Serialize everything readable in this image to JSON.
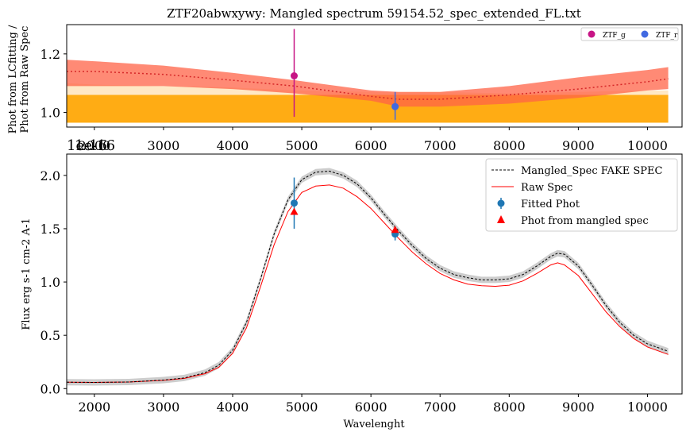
{
  "figure": {
    "title": "ZTF20abwxywy: Mangled spectrum 59154.52_spec_extended_FL.txt"
  },
  "chart_data": [
    {
      "type": "line",
      "panel": "top",
      "ylabel_line1": "Phot from LCfitting /",
      "ylabel_line2": "Phot from Raw Spec",
      "xlim": [
        1600,
        10500
      ],
      "ylim": [
        0.95,
        1.3
      ],
      "xticks": [
        2000,
        3000,
        4000,
        5000,
        6000,
        7000,
        8000,
        9000,
        10000
      ],
      "yticks": [
        1.0,
        1.2
      ],
      "offset_text": "1e-16",
      "legend_position": "top-right",
      "legend": [
        "ZTF_g",
        "ZTF_r"
      ],
      "ratio_curve": {
        "x": [
          1600,
          2000,
          3000,
          4000,
          4900,
          6000,
          6400,
          7000,
          8000,
          9000,
          10000,
          10300
        ],
        "y": [
          1.14,
          1.14,
          1.13,
          1.11,
          1.09,
          1.055,
          1.045,
          1.045,
          1.06,
          1.08,
          1.105,
          1.115
        ]
      },
      "red_band_upper": [
        1.18,
        1.175,
        1.16,
        1.135,
        1.11,
        1.075,
        1.07,
        1.07,
        1.09,
        1.12,
        1.145,
        1.155
      ],
      "red_band_lower": [
        1.09,
        1.09,
        1.09,
        1.08,
        1.065,
        1.04,
        1.02,
        1.02,
        1.03,
        1.05,
        1.075,
        1.08
      ],
      "orange_band_upper": [
        1.06,
        1.06,
        1.06,
        1.06,
        1.06,
        1.06,
        1.06,
        1.06,
        1.06,
        1.06,
        1.06,
        1.06
      ],
      "orange_band_lower": [
        0.965,
        0.965,
        0.965,
        0.965,
        0.965,
        0.965,
        0.965,
        0.965,
        0.965,
        0.965,
        0.965,
        0.965
      ],
      "light_band_upper": [
        1.1,
        1.095,
        1.09,
        1.085,
        1.075,
        1.07,
        1.07,
        1.07,
        1.065,
        1.07,
        1.075,
        1.075
      ],
      "points": [
        {
          "name": "ZTF_g",
          "x": 4890,
          "y": 1.125,
          "yerr_low": 0.985,
          "yerr_high": 1.285,
          "color": "#c71585"
        },
        {
          "name": "ZTF_r",
          "x": 6350,
          "y": 1.02,
          "yerr_low": 0.975,
          "yerr_high": 1.07,
          "color": "#4169e1"
        }
      ],
      "colors": {
        "curve": "#d62728",
        "red_band": "#ff6347",
        "orange_band": "#ffa500",
        "light_band": "#ffdead"
      }
    },
    {
      "type": "line",
      "panel": "bottom",
      "xlabel": "Wavelenght",
      "ylabel": "Flux erg s-1 cm-2 A-1",
      "xlim": [
        1600,
        10500
      ],
      "ylim": [
        -0.05,
        2.2
      ],
      "xticks": [
        2000,
        3000,
        4000,
        5000,
        6000,
        7000,
        8000,
        9000,
        10000
      ],
      "yticks": [
        0.0,
        0.5,
        1.0,
        1.5,
        2.0
      ],
      "offset_text": "1e-16",
      "legend_position": "top-right",
      "legend": [
        "Mangled_Spec FAKE SPEC",
        "Raw Spec",
        "Fitted Phot",
        "Phot from mangled spec"
      ],
      "x": [
        1600,
        2000,
        2500,
        3000,
        3300,
        3600,
        3800,
        4000,
        4200,
        4400,
        4600,
        4800,
        5000,
        5200,
        5400,
        5600,
        5800,
        6000,
        6200,
        6400,
        6600,
        6800,
        7000,
        7200,
        7400,
        7600,
        7800,
        8000,
        8200,
        8400,
        8600,
        8700,
        8800,
        9000,
        9200,
        9400,
        9600,
        9800,
        10000,
        10300
      ],
      "mangled": [
        0.06,
        0.058,
        0.062,
        0.08,
        0.1,
        0.15,
        0.22,
        0.36,
        0.62,
        1.02,
        1.45,
        1.77,
        1.96,
        2.03,
        2.04,
        2.0,
        1.92,
        1.79,
        1.63,
        1.48,
        1.34,
        1.22,
        1.13,
        1.07,
        1.04,
        1.02,
        1.02,
        1.03,
        1.07,
        1.15,
        1.24,
        1.27,
        1.26,
        1.15,
        0.97,
        0.78,
        0.62,
        0.5,
        0.42,
        0.35
      ],
      "raw": [
        0.06,
        0.058,
        0.062,
        0.078,
        0.095,
        0.14,
        0.2,
        0.33,
        0.57,
        0.95,
        1.35,
        1.66,
        1.84,
        1.9,
        1.91,
        1.88,
        1.8,
        1.69,
        1.55,
        1.41,
        1.28,
        1.17,
        1.08,
        1.02,
        0.98,
        0.965,
        0.96,
        0.97,
        1.01,
        1.08,
        1.16,
        1.18,
        1.16,
        1.06,
        0.89,
        0.72,
        0.58,
        0.47,
        0.39,
        0.32
      ],
      "band_halfwidth": 0.03,
      "fitted_phot": [
        {
          "x": 4890,
          "y": 1.74,
          "yerr": 0.24
        },
        {
          "x": 6350,
          "y": 1.45,
          "yerr": 0.06
        }
      ],
      "phot_from_mangled": [
        {
          "x": 4890,
          "y": 1.66
        },
        {
          "x": 6350,
          "y": 1.49
        }
      ],
      "colors": {
        "mangled": "#000000",
        "raw": "#ff0000",
        "band": "#c8c8c8",
        "fitted": "#1f77b4",
        "mangled_phot": "#ff0000"
      }
    }
  ]
}
